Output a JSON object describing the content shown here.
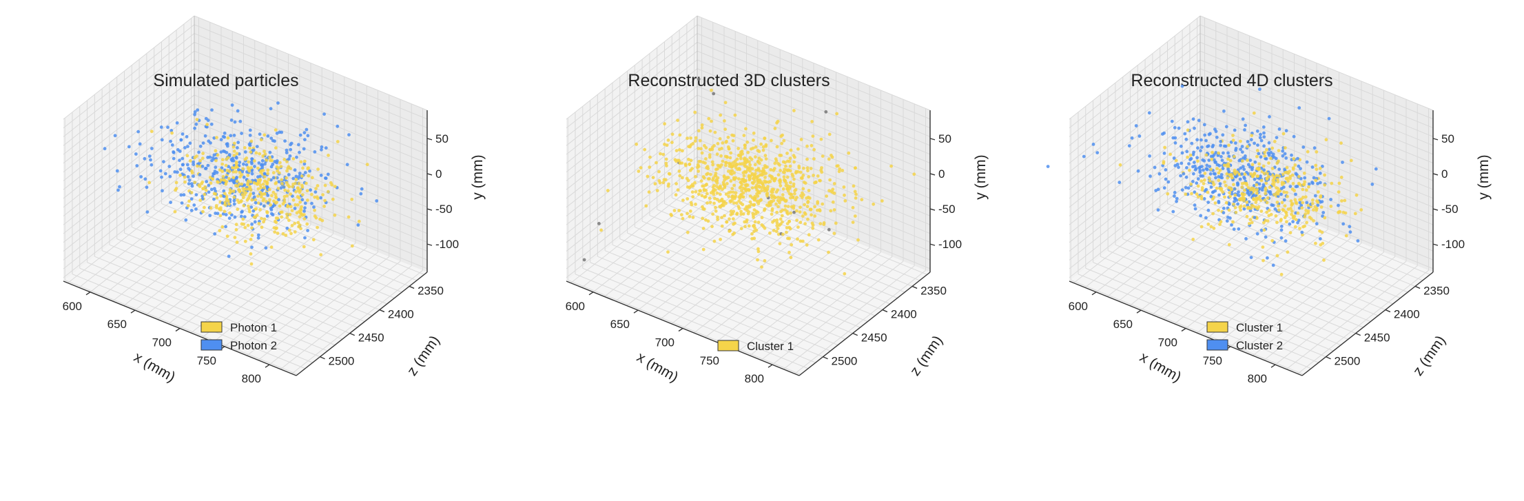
{
  "figure": {
    "panels": [
      {
        "title": "Simulated particles",
        "xlabel": "x (mm)",
        "ylabel": "y (mm)",
        "zlabel": "z (mm)",
        "legend": [
          {
            "label": "Photon 1",
            "color": "#f5d44a"
          },
          {
            "label": "Photon 2",
            "color": "#4f8ff0"
          }
        ]
      },
      {
        "title": "Reconstructed 3D clusters",
        "xlabel": "x (mm)",
        "ylabel": "y (mm)",
        "zlabel": "z (mm)",
        "legend": [
          {
            "label": "Cluster 1",
            "color": "#f5d44a"
          }
        ]
      },
      {
        "title": "Reconstructed 4D clusters",
        "xlabel": "x (mm)",
        "ylabel": "y (mm)",
        "zlabel": "z (mm)",
        "legend": [
          {
            "label": "Cluster 1",
            "color": "#f5d44a"
          },
          {
            "label": "Cluster 2",
            "color": "#4f8ff0"
          }
        ]
      }
    ]
  },
  "chart_data": [
    {
      "type": "scatter",
      "title": "Simulated particles",
      "xlabel": "x (mm)",
      "ylabel": "y (mm)",
      "zlabel": "z (mm)",
      "xticks": [
        600,
        650,
        700,
        750,
        800
      ],
      "yticks": [
        50,
        0,
        -50,
        -100
      ],
      "zticks": [
        2350,
        2400,
        2450,
        2500
      ],
      "xlim": [
        570,
        830
      ],
      "ylim": [
        -140,
        90
      ],
      "zlim": [
        2320,
        2540
      ],
      "grid": true,
      "legend_position": "lower-center",
      "series": [
        {
          "name": "Photon 1",
          "color": "#f5d44a",
          "centroid": {
            "x": 725,
            "y": 5,
            "z": 2445
          },
          "spread": {
            "x": 40,
            "y": 20,
            "z": 30
          },
          "approx_points": 900
        },
        {
          "name": "Photon 2",
          "color": "#4f8ff0",
          "centroid": {
            "x": 680,
            "y": -20,
            "z": 2410
          },
          "spread": {
            "x": 45,
            "y": 22,
            "z": 35
          },
          "approx_points": 1000
        }
      ]
    },
    {
      "type": "scatter",
      "title": "Reconstructed 3D clusters",
      "xlabel": "x (mm)",
      "ylabel": "y (mm)",
      "zlabel": "z (mm)",
      "xticks": [
        600,
        650,
        700,
        750,
        800
      ],
      "yticks": [
        50,
        0,
        -50,
        -100
      ],
      "zticks": [
        2350,
        2400,
        2450,
        2500
      ],
      "xlim": [
        570,
        830
      ],
      "ylim": [
        -140,
        90
      ],
      "zlim": [
        2320,
        2540
      ],
      "grid": true,
      "legend_position": "lower-center",
      "series": [
        {
          "name": "Cluster 1",
          "color": "#f5d44a",
          "centroid": {
            "x": 705,
            "y": -5,
            "z": 2430
          },
          "spread": {
            "x": 45,
            "y": 22,
            "z": 35
          },
          "approx_points": 1900
        },
        {
          "color": "#777777",
          "centroid": {
            "x": 700,
            "y": -40,
            "z": 2430
          },
          "spread": {
            "x": 90,
            "y": 60,
            "z": 80
          },
          "approx_points": 25
        }
      ]
    },
    {
      "type": "scatter",
      "title": "Reconstructed 4D clusters",
      "xlabel": "x (mm)",
      "ylabel": "y (mm)",
      "zlabel": "z (mm)",
      "xticks": [
        600,
        650,
        700,
        750,
        800
      ],
      "yticks": [
        50,
        0,
        -50,
        -100
      ],
      "zticks": [
        2350,
        2400,
        2450,
        2500
      ],
      "xlim": [
        570,
        830
      ],
      "ylim": [
        -140,
        90
      ],
      "zlim": [
        2320,
        2540
      ],
      "grid": true,
      "legend_position": "lower-center",
      "series": [
        {
          "name": "Cluster 1",
          "color": "#f5d44a",
          "centroid": {
            "x": 725,
            "y": 5,
            "z": 2445
          },
          "spread": {
            "x": 40,
            "y": 20,
            "z": 30
          },
          "approx_points": 850
        },
        {
          "name": "Cluster 2",
          "color": "#4f8ff0",
          "centroid": {
            "x": 680,
            "y": -20,
            "z": 2410
          },
          "spread": {
            "x": 45,
            "y": 22,
            "z": 35
          },
          "approx_points": 1050
        }
      ]
    }
  ]
}
